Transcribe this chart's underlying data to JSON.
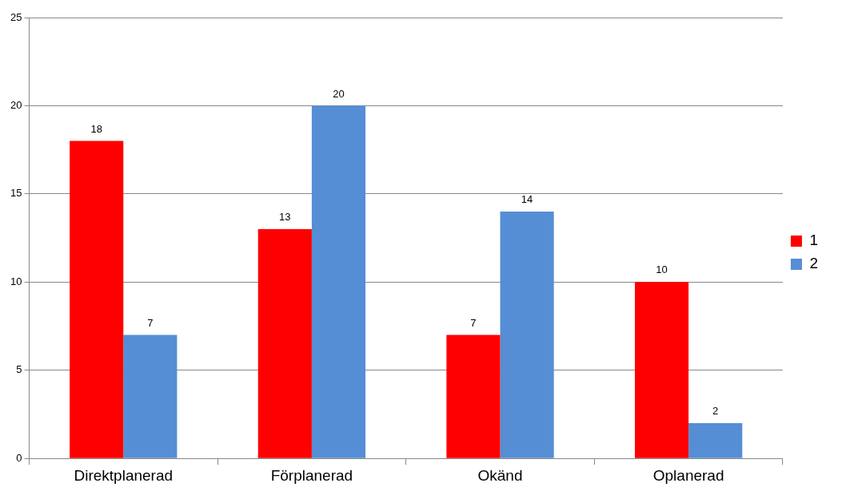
{
  "chart_data": {
    "type": "bar",
    "categories": [
      "Direktplanerad",
      "Förplanerad",
      "Okänd",
      "Oplanerad"
    ],
    "series": [
      {
        "name": "1",
        "color": "#ff0000",
        "values": [
          18,
          13,
          7,
          10
        ]
      },
      {
        "name": "2",
        "color": "#558ed5",
        "values": [
          7,
          20,
          14,
          2
        ]
      }
    ],
    "ylim": [
      0,
      25
    ],
    "yticks": [
      0,
      5,
      10,
      15,
      20,
      25
    ],
    "grid": "y",
    "legend": "right",
    "data_labels": true
  }
}
